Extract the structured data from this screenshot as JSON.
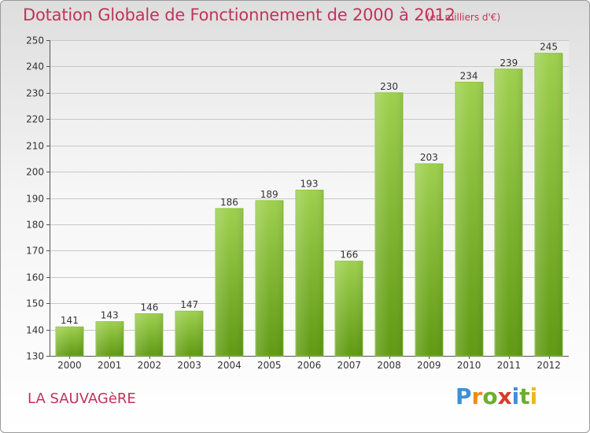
{
  "title": "Dotation Globale de Fonctionnement de 2000 à 2012",
  "unit_note": "(en milliers d'€)",
  "commune": "LA SAUVAGèRE",
  "brand": {
    "letters": [
      "P",
      "r",
      "o",
      "x",
      "i",
      "t",
      "i"
    ],
    "colors": [
      "#3f8fd6",
      "#f08a1c",
      "#6cae2f",
      "#d93a2b",
      "#3f8fd6",
      "#6cae2f",
      "#f0b81c"
    ]
  },
  "colors": {
    "bar_top": "#9ed04e",
    "bar_bottom": "#5f9a12",
    "title": "#c0345a",
    "grid": "#c8c8c8"
  },
  "chart_data": {
    "type": "bar",
    "categories": [
      "2000",
      "2001",
      "2002",
      "2003",
      "2004",
      "2005",
      "2006",
      "2007",
      "2008",
      "2009",
      "2010",
      "2011",
      "2012"
    ],
    "values": [
      141,
      143,
      146,
      147,
      186,
      189,
      193,
      166,
      230,
      203,
      234,
      239,
      245
    ],
    "ylim": [
      130,
      250
    ],
    "yticks": [
      130,
      140,
      150,
      160,
      170,
      180,
      190,
      200,
      210,
      220,
      230,
      240,
      250
    ],
    "grid": true
  }
}
